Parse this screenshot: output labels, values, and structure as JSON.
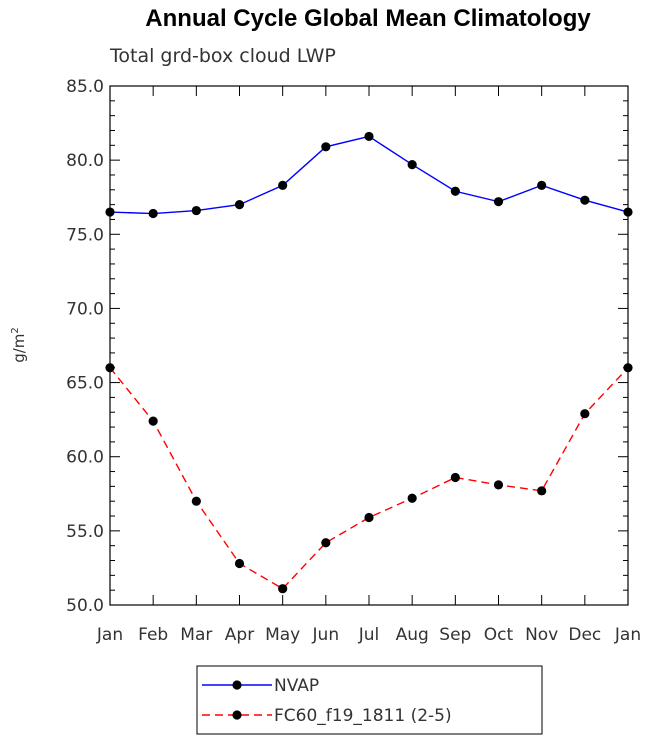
{
  "chart_data": {
    "type": "line",
    "title": "Annual Cycle Global Mean Climatology",
    "subtitle": "Total grd-box cloud LWP",
    "xlabel": "",
    "ylabel": "g/m",
    "ylabel_sup": "2",
    "categories": [
      "Jan",
      "Feb",
      "Mar",
      "Apr",
      "May",
      "Jun",
      "Jul",
      "Aug",
      "Sep",
      "Oct",
      "Nov",
      "Dec",
      "Jan"
    ],
    "ylim": [
      50,
      85
    ],
    "yticks": [
      "50.0",
      "55.0",
      "60.0",
      "65.0",
      "70.0",
      "75.0",
      "80.0",
      "85.0"
    ],
    "grid": false,
    "legend_position": "bottom-center",
    "series": [
      {
        "name": "NVAP",
        "color": "#0000ff",
        "dash": "solid",
        "values": [
          76.5,
          76.4,
          76.6,
          77.0,
          78.3,
          80.9,
          81.6,
          79.7,
          77.9,
          77.2,
          78.3,
          77.3,
          76.5
        ]
      },
      {
        "name": "FC60_f19_1811 (2-5)",
        "color": "#ff0000",
        "dash": "dashed",
        "values": [
          66.0,
          62.4,
          57.0,
          52.8,
          51.1,
          54.2,
          55.9,
          57.2,
          58.6,
          58.1,
          57.7,
          62.9,
          66.0
        ]
      }
    ]
  }
}
